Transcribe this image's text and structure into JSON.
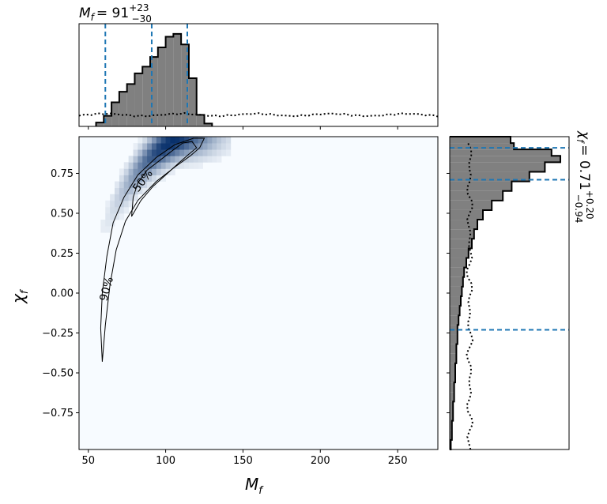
{
  "colors": {
    "accent": "#1f77b4",
    "hist_fill": "#808080",
    "kde_dark": "#08306b",
    "kde_light": "#f7fbff"
  },
  "chart_data": [
    {
      "name": "joint",
      "type": "heatmap",
      "xlabel": "M",
      "xlabel_sub": "f",
      "ylabel": "χ",
      "ylabel_sub": "f",
      "xlim": [
        44,
        276
      ],
      "ylim": [
        -0.98,
        0.98
      ],
      "xticks": [
        "50",
        "100",
        "150",
        "200",
        "250"
      ],
      "xtick_values": [
        50,
        100,
        150,
        200,
        250
      ],
      "yticks": [
        "−0.75",
        "−0.50",
        "−0.25",
        "0.00",
        "0.25",
        "0.50",
        "0.75"
      ],
      "ytick_values": [
        -0.75,
        -0.5,
        -0.25,
        0.0,
        0.25,
        0.5,
        0.75
      ],
      "contour_labels": [
        "50%",
        "90%"
      ],
      "contour_50": [
        [
          78,
          0.48
        ],
        [
          84,
          0.58
        ],
        [
          92,
          0.67
        ],
        [
          100,
          0.74
        ],
        [
          108,
          0.81
        ],
        [
          115,
          0.87
        ],
        [
          120,
          0.91
        ],
        [
          117,
          0.95
        ],
        [
          111,
          0.94
        ],
        [
          104,
          0.89
        ],
        [
          96,
          0.83
        ],
        [
          88,
          0.77
        ],
        [
          82,
          0.69
        ],
        [
          79,
          0.6
        ],
        [
          78,
          0.48
        ]
      ],
      "contour_90": [
        [
          59,
          -0.43
        ],
        [
          61,
          -0.2
        ],
        [
          64,
          0.05
        ],
        [
          68,
          0.27
        ],
        [
          74,
          0.45
        ],
        [
          82,
          0.58
        ],
        [
          94,
          0.7
        ],
        [
          106,
          0.79
        ],
        [
          116,
          0.86
        ],
        [
          122,
          0.91
        ],
        [
          125,
          0.97
        ],
        [
          118,
          0.97
        ],
        [
          106,
          0.93
        ],
        [
          94,
          0.85
        ],
        [
          82,
          0.74
        ],
        [
          73,
          0.6
        ],
        [
          66,
          0.44
        ],
        [
          62,
          0.23
        ],
        [
          59,
          0.0
        ],
        [
          58,
          -0.22
        ],
        [
          59,
          -0.43
        ]
      ]
    },
    {
      "name": "marginal-mass",
      "type": "bar",
      "title_main": "M",
      "title_sub": "f",
      "title_value": "= 91",
      "title_plus": "+23",
      "title_minus": "−30",
      "bin_edges": [
        55,
        60,
        65,
        70,
        75,
        80,
        85,
        90,
        95,
        100,
        105,
        110,
        115,
        120,
        125,
        130
      ],
      "values": [
        0.04,
        0.11,
        0.25,
        0.36,
        0.44,
        0.55,
        0.62,
        0.72,
        0.82,
        0.93,
        0.96,
        0.85,
        0.5,
        0.12,
        0.03
      ],
      "prior_level": 0.12,
      "quantiles": [
        61,
        91,
        114
      ],
      "xlim": [
        44,
        276
      ]
    },
    {
      "name": "marginal-spin",
      "type": "bar",
      "title_main": "χ",
      "title_sub": "f",
      "title_value": "= 0.71",
      "title_plus": "+0.20",
      "title_minus": "−0.94",
      "bin_edges": [
        -0.98,
        -0.92,
        -0.86,
        -0.8,
        -0.74,
        -0.68,
        -0.62,
        -0.56,
        -0.5,
        -0.44,
        -0.38,
        -0.32,
        -0.26,
        -0.2,
        -0.14,
        -0.08,
        -0.02,
        0.04,
        0.1,
        0.16,
        0.22,
        0.28,
        0.34,
        0.4,
        0.46,
        0.52,
        0.58,
        0.64,
        0.7,
        0.76,
        0.82,
        0.86,
        0.9,
        0.94,
        0.98
      ],
      "values": [
        0.01,
        0.02,
        0.02,
        0.03,
        0.03,
        0.04,
        0.04,
        0.05,
        0.05,
        0.06,
        0.06,
        0.07,
        0.07,
        0.08,
        0.09,
        0.1,
        0.11,
        0.12,
        0.13,
        0.15,
        0.17,
        0.2,
        0.22,
        0.25,
        0.3,
        0.38,
        0.48,
        0.56,
        0.72,
        0.86,
        1.0,
        0.92,
        0.58,
        0.55
      ],
      "prior_level": 0.18,
      "quantiles": [
        -0.23,
        0.71,
        0.91
      ],
      "ylim": [
        -0.98,
        0.98
      ]
    }
  ]
}
